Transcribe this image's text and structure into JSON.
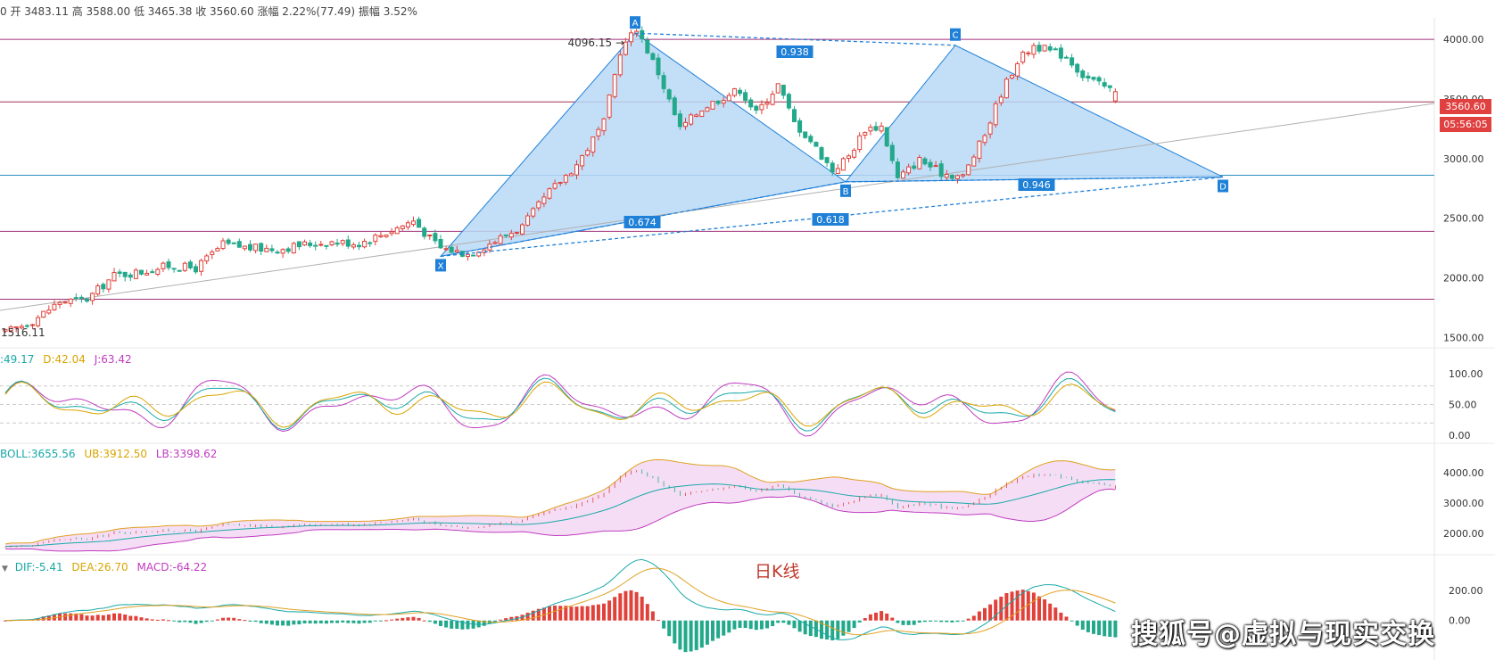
{
  "header": {
    "quote_text": "0 开 3483.11 高 3588.00 低 3465.38 收 3560.60 涨幅 2.22%(77.49) 振幅 3.52%"
  },
  "price_panel": {
    "high_label": "4096.15 →",
    "low_label": "1516.11",
    "last_price": "3560.60",
    "countdown": "05:56:05",
    "last_price_color": "#e04040",
    "y_ticks": [
      "4000.00",
      "3500.00",
      "3000.00",
      "2500.00",
      "2000.00",
      "1500.00"
    ],
    "y_tick_values": [
      4000,
      3500,
      3000,
      2500,
      2000,
      1500
    ],
    "pattern_points": [
      "X",
      "A",
      "B",
      "C",
      "D"
    ],
    "ratios": [
      "0.938",
      "0.674",
      "0.618",
      "0.946"
    ],
    "pattern_color": "#1f80d8",
    "pattern_fill": "#b8d8f6",
    "hline_color": "#a0307a"
  },
  "kdj_panel": {
    "k_label": ":49.17",
    "d_label": "D:42.04",
    "j_label": "J:63.42",
    "y_ticks": [
      "100.00",
      "50.00",
      "0.00"
    ]
  },
  "boll_panel": {
    "boll_label": "BOLL:3655.56",
    "ub_label": "UB:3912.50",
    "lb_label": "LB:3398.62",
    "y_ticks": [
      "4000.00",
      "3000.00",
      "2000.00"
    ]
  },
  "macd_panel": {
    "dif_label": "DIF:-5.41",
    "dea_label": "DEA:26.70",
    "macd_label": "MACD:-64.22",
    "y_ticks": [
      "200.00",
      "0.00"
    ],
    "chart_caption": "日K线",
    "watermark": "搜狐号@虚拟与现实交换"
  },
  "chart_data": {
    "type": "candlestick",
    "series_points": {
      "X": 2180,
      "A": 4096.15,
      "B": 2820,
      "C": 3980,
      "D": 2860
    },
    "last_close": 3560.6,
    "open": 3483.11,
    "high": 3588.0,
    "low": 3465.38,
    "change_pct": 2.22,
    "change_abs": 77.49,
    "amplitude_pct": 3.52,
    "period_low": 1516.11,
    "period_high": 4096.15,
    "horizontal_levels": [
      4000,
      3475,
      2860,
      2390,
      1820
    ],
    "ylim": [
      1450,
      4180
    ],
    "kdj": {
      "K": 49.17,
      "D": 42.04,
      "J": 63.42,
      "ylim": [
        -10,
        110
      ]
    },
    "boll": {
      "BOLL": 3655.56,
      "UB": 3912.5,
      "LB": 3398.62
    },
    "macd": {
      "DIF": -5.41,
      "DEA": 26.7,
      "MACD": -64.22
    }
  }
}
